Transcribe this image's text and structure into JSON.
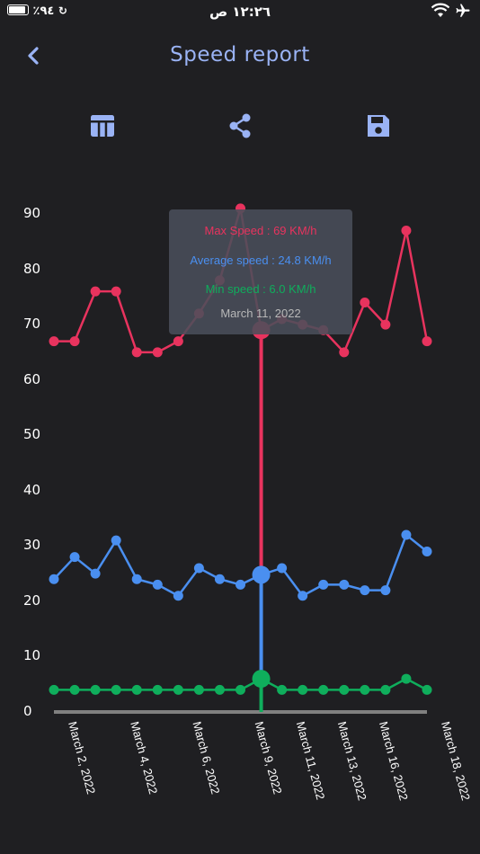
{
  "status_bar": {
    "battery": "٪٩٤",
    "time": "١٢:٢٦ ص"
  },
  "header": {
    "title": "Speed report"
  },
  "toolbar": {
    "table_icon": "table-icon",
    "share_icon": "share-icon",
    "save_icon": "save-icon"
  },
  "tooltip": {
    "max_label": "Max Speed : 69 KM/h",
    "avg_label": "Average speed : 24.8 KM/h",
    "min_label": "Min speed : 6.0 KM/h",
    "date_label": "March 11, 2022"
  },
  "colors": {
    "max": "#e8335e",
    "avg": "#4a8ff0",
    "min": "#0fae5c",
    "accent": "#9ab3f5",
    "background": "#1f1f22"
  },
  "chart_data": {
    "type": "line",
    "ylim": [
      0,
      90
    ],
    "y_ticks": [
      "0",
      "10",
      "20",
      "30",
      "40",
      "50",
      "60",
      "70",
      "80",
      "90"
    ],
    "x_tick_labels": [
      "March 2, 2022",
      "March 4, 2022",
      "March 6, 2022",
      "March 9, 2022",
      "March 11, 2022",
      "March 13, 2022",
      "March 16, 2022",
      "March 18, 2022"
    ],
    "x_tick_index": [
      0,
      3,
      6,
      9,
      11,
      13,
      15,
      18
    ],
    "highlight_index": 10,
    "series": [
      {
        "name": "Max Speed",
        "values": [
          67,
          67,
          76,
          76,
          65,
          65,
          67,
          72,
          78,
          91,
          69,
          71,
          70,
          69,
          65,
          74,
          70,
          87,
          67
        ]
      },
      {
        "name": "Average speed",
        "values": [
          24,
          28,
          25,
          31,
          24,
          23,
          21,
          26,
          24,
          23,
          24.8,
          26,
          21,
          23,
          23,
          22,
          22,
          32,
          29
        ]
      },
      {
        "name": "Min speed",
        "values": [
          4,
          4,
          4,
          4,
          4,
          4,
          4,
          4,
          4,
          4,
          6,
          4,
          4,
          4,
          4,
          4,
          4,
          6,
          4
        ]
      }
    ]
  }
}
